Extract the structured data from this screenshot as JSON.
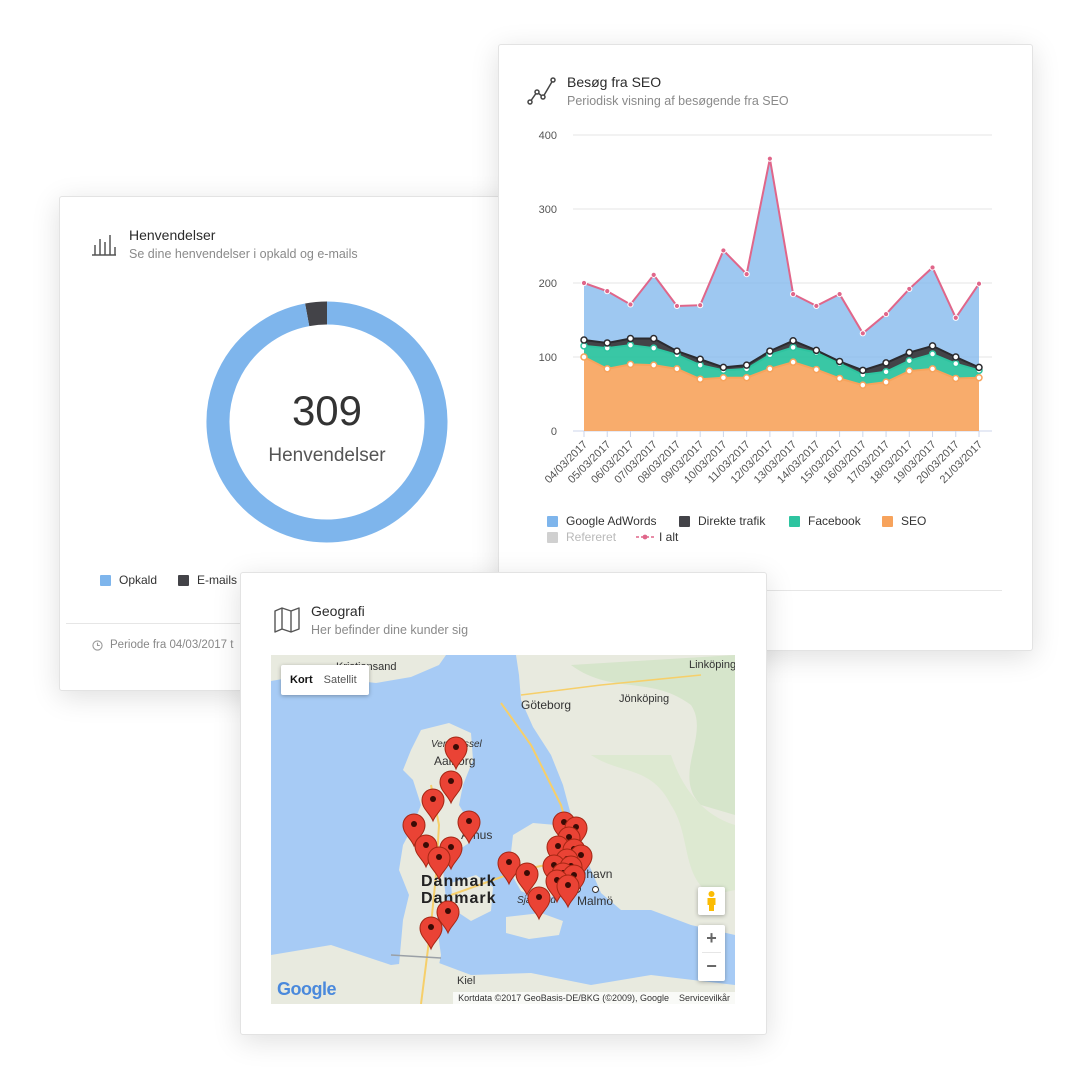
{
  "henvendelser": {
    "title": "Henvendelser",
    "subtitle": "Se dine henvendelser i opkald og e-mails",
    "total": "309",
    "total_label": "Henvendelser",
    "icon": "bar-chart-icon",
    "legend": [
      {
        "label": "Opkald",
        "color": "#7eb5ec"
      },
      {
        "label": "E-mails",
        "color": "#434348"
      }
    ],
    "donut": [
      {
        "name": "Opkald",
        "value": 300,
        "color": "#7eb5ec"
      },
      {
        "name": "E-mails",
        "value": 9,
        "color": "#434348"
      }
    ],
    "period": "Periode fra 04/03/2017 t"
  },
  "seo": {
    "title": "Besøg fra SEO",
    "subtitle": "Periodisk visning af besøgende fra SEO",
    "icon": "line-chart-icon",
    "legend": [
      {
        "label": "Google AdWords",
        "color": "#7eb5ec"
      },
      {
        "label": "Direkte trafik",
        "color": "#434348"
      },
      {
        "label": "Facebook",
        "color": "#2ec4a0"
      },
      {
        "label": "SEO",
        "color": "#f7a35c"
      },
      {
        "label": "Refereret",
        "color": "#d0d0d0"
      },
      {
        "label": "I alt",
        "color": "#e0668a"
      }
    ]
  },
  "chart_data": {
    "type": "area",
    "ylim": [
      0,
      400
    ],
    "yticks": [
      "0",
      "100",
      "200",
      "300",
      "400"
    ],
    "categories": [
      "04/03/2017",
      "05/03/2017",
      "06/03/2017",
      "07/03/2017",
      "08/03/2017",
      "09/03/2017",
      "10/03/2017",
      "11/03/2017",
      "12/03/2017",
      "13/03/2017",
      "14/03/2017",
      "15/03/2017",
      "16/03/2017",
      "17/03/2017",
      "18/03/2017",
      "19/03/2017",
      "20/03/2017",
      "21/03/2017"
    ],
    "series": [
      {
        "name": "SEO",
        "values": [
          100,
          84,
          90,
          89,
          84,
          70,
          72,
          72,
          84,
          93,
          83,
          71,
          62,
          66,
          81,
          84,
          71,
          72
        ]
      },
      {
        "name": "Facebook",
        "values": [
          15,
          28,
          26,
          23,
          19,
          19,
          10,
          12,
          19,
          20,
          23,
          20,
          14,
          14,
          14,
          20,
          20,
          10
        ]
      },
      {
        "name": "Direkte trafik",
        "values": [
          8,
          7,
          9,
          13,
          5,
          8,
          4,
          5,
          5,
          9,
          3,
          3,
          6,
          12,
          11,
          11,
          9,
          4
        ]
      },
      {
        "name": "Google AdWords",
        "values": [
          77,
          70,
          46,
          86,
          61,
          73,
          158,
          123,
          260,
          63,
          60,
          91,
          50,
          66,
          86,
          106,
          53,
          113
        ]
      },
      {
        "name": "Refereret",
        "values": [
          0,
          0,
          0,
          0,
          0,
          0,
          0,
          0,
          0,
          0,
          0,
          0,
          0,
          0,
          0,
          0,
          0,
          0
        ]
      },
      {
        "name": "I alt",
        "values": [
          200,
          189,
          171,
          211,
          169,
          170,
          244,
          212,
          368,
          185,
          169,
          185,
          132,
          158,
          192,
          221,
          153,
          199
        ]
      }
    ]
  },
  "geografi": {
    "title": "Geografi",
    "subtitle": "Her befinder dine kunder sig",
    "icon": "map-icon",
    "map_type_buttons": [
      "Kort",
      "Satellit"
    ],
    "places": [
      "Kristiansand",
      "Linköping",
      "Jönköping",
      "Göteborg",
      "Vendsyssel",
      "Aalborg",
      "Århus",
      "Danmark",
      "Danmark",
      "København",
      "Malmö",
      "Sjælland",
      "Kiel"
    ],
    "attribution": "Kortdata ©2017 GeoBasis-DE/BKG (©2009), Google",
    "terms": "Servicevilkår",
    "logo": "Google",
    "zoom_in": "+",
    "zoom_out": "−",
    "pegman_icon": "pegman-icon"
  }
}
